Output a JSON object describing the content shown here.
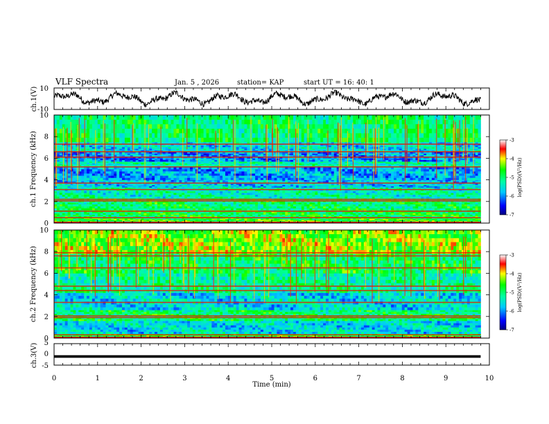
{
  "header": {
    "title": "VLF Spectra",
    "date": "Jan. 5 , 2026",
    "station": "station= KAP",
    "start_ut": "start  UT  =   16: 40: 1"
  },
  "chart_data": [
    {
      "type": "line",
      "panel": "ch1-waveform",
      "ylabel": "ch.1(V)",
      "ylim": [
        -10,
        10
      ],
      "yticks": [
        "10",
        "-10"
      ],
      "x_range_min": [
        0,
        9.8
      ],
      "y_mean": 0.2,
      "y_range_visible": [
        -8,
        8
      ]
    },
    {
      "type": "heatmap",
      "panel": "ch1-spectrogram",
      "ylabel": "ch.1 Frequency (kHz)",
      "ylim": [
        0,
        10
      ],
      "yticks": [
        "0",
        "2",
        "4",
        "6",
        "8",
        "10"
      ],
      "x_range_min": [
        0,
        9.8
      ],
      "colorbar": {
        "label": "log(PSD)(V²/Hz)",
        "range": [
          -7,
          -3
        ],
        "ticks": [
          "-3",
          "-4",
          "-5",
          "-6",
          "-7"
        ]
      },
      "bands_kHz": [
        {
          "from": 0.0,
          "to": 0.4,
          "level": -4.6
        },
        {
          "from": 0.4,
          "to": 1.2,
          "level": -4.9
        },
        {
          "from": 1.2,
          "to": 2.3,
          "level": -5.0
        },
        {
          "from": 2.3,
          "to": 3.3,
          "level": -5.3
        },
        {
          "from": 3.3,
          "to": 4.0,
          "level": -5.7
        },
        {
          "from": 4.0,
          "to": 5.2,
          "level": -5.9
        },
        {
          "from": 5.2,
          "to": 5.7,
          "level": -5.3
        },
        {
          "from": 5.7,
          "to": 6.6,
          "level": -6.0
        },
        {
          "from": 6.6,
          "to": 7.5,
          "level": -5.6
        },
        {
          "from": 7.5,
          "to": 10.0,
          "level": -5.0
        }
      ],
      "tones_kHz": [
        0.5,
        1.1,
        2.05,
        2.2,
        3.1,
        3.7,
        5.2,
        6.1,
        6.6,
        7.3
      ]
    },
    {
      "type": "heatmap",
      "panel": "ch2-spectrogram",
      "ylabel": "ch.2 Frequency (kHz)",
      "ylim": [
        0,
        10
      ],
      "yticks": [
        "0",
        "2",
        "4",
        "6",
        "8",
        "10"
      ],
      "x_range_min": [
        0,
        9.8
      ],
      "colorbar": {
        "label": "log(PSD)(V²/Hz)",
        "range": [
          -7,
          -3
        ],
        "ticks": [
          "-3",
          "-4",
          "-5",
          "-6",
          "-7"
        ]
      },
      "bands_kHz": [
        {
          "from": 0.0,
          "to": 0.4,
          "level": -4.7
        },
        {
          "from": 0.4,
          "to": 1.6,
          "level": -5.6
        },
        {
          "from": 1.6,
          "to": 2.6,
          "level": -5.0
        },
        {
          "from": 2.6,
          "to": 4.2,
          "level": -5.6
        },
        {
          "from": 4.2,
          "to": 6.0,
          "level": -5.2
        },
        {
          "from": 6.0,
          "to": 7.8,
          "level": -4.9
        },
        {
          "from": 7.8,
          "to": 10.0,
          "level": -4.3
        }
      ],
      "tones_kHz": [
        0.3,
        1.9,
        2.05,
        3.3,
        4.4,
        4.8,
        6.5,
        7.6,
        7.9
      ]
    },
    {
      "type": "line",
      "panel": "ch3-waveform",
      "ylabel": "ch.3(V)",
      "xlabel": "Time  (min)",
      "ylim": [
        -5,
        5
      ],
      "yticks": [
        "5",
        "0",
        "-5"
      ],
      "xticks": [
        "0",
        "1",
        "2",
        "3",
        "4",
        "5",
        "6",
        "7",
        "8",
        "9",
        "10"
      ],
      "xlim": [
        0,
        10
      ],
      "x_range_min": [
        0,
        9.8
      ],
      "y_mean": -1.0,
      "y_range_visible": [
        -1.6,
        -0.4
      ]
    }
  ]
}
